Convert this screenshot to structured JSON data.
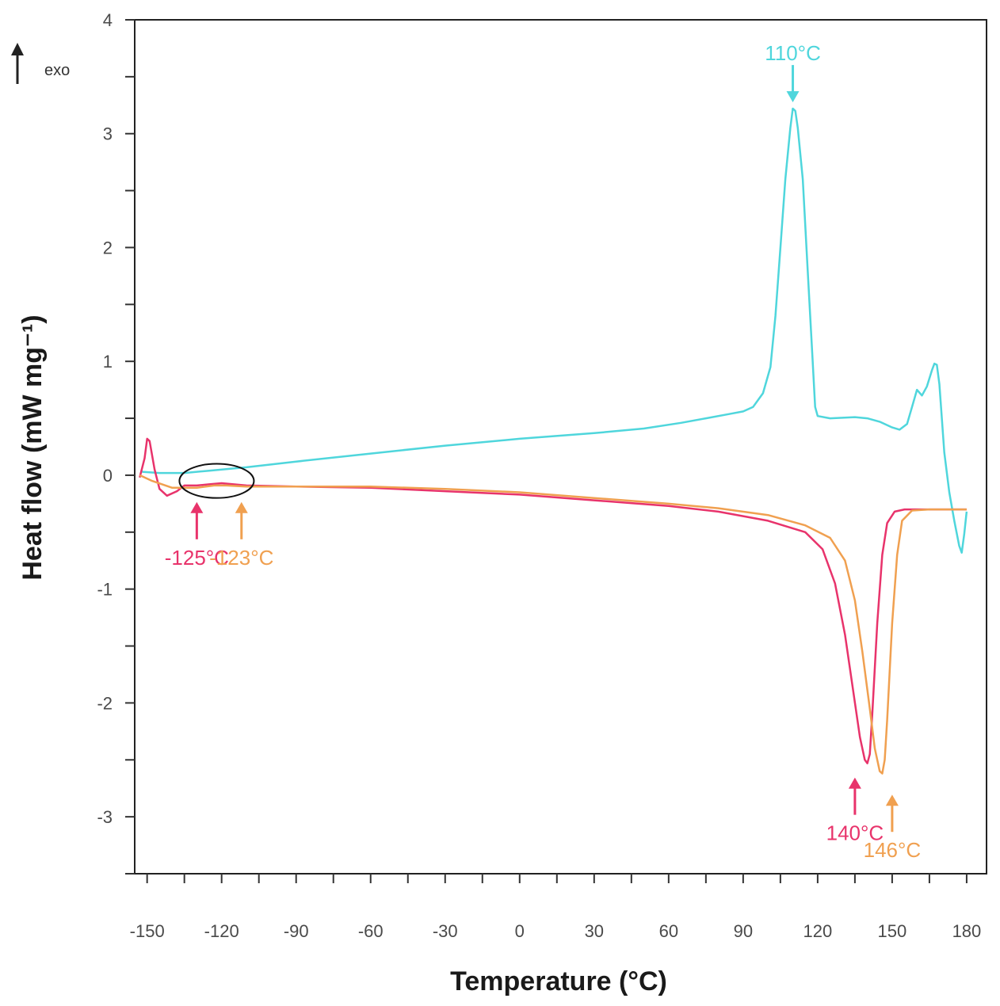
{
  "chart_data": {
    "type": "line",
    "xlabel": "Temperature (°C)",
    "ylabel": "Heat flow (mW mg⁻¹)",
    "xlim": [
      -155,
      188
    ],
    "ylim": [
      -3.5,
      4
    ],
    "x_ticks": [
      -150,
      -120,
      -90,
      -60,
      -30,
      0,
      30,
      60,
      90,
      120,
      150,
      180
    ],
    "y_ticks": [
      -3,
      -2,
      -1,
      0,
      1,
      2,
      3,
      4
    ],
    "exo_label": "exo",
    "colors": {
      "cyan": "#4fd6dc",
      "pink": "#e8336b",
      "orange": "#f0a050"
    },
    "series": [
      {
        "name": "cyan",
        "color": "#4fd6dc",
        "points": [
          [
            -152,
            0.03
          ],
          [
            -145,
            0.02
          ],
          [
            -135,
            0.02
          ],
          [
            -125,
            0.04
          ],
          [
            -110,
            0.07
          ],
          [
            -90,
            0.12
          ],
          [
            -60,
            0.19
          ],
          [
            -30,
            0.26
          ],
          [
            0,
            0.32
          ],
          [
            30,
            0.37
          ],
          [
            50,
            0.41
          ],
          [
            65,
            0.46
          ],
          [
            75,
            0.5
          ],
          [
            85,
            0.54
          ],
          [
            90,
            0.56
          ],
          [
            94,
            0.6
          ],
          [
            98,
            0.72
          ],
          [
            101,
            0.95
          ],
          [
            103,
            1.4
          ],
          [
            105,
            2.0
          ],
          [
            107,
            2.6
          ],
          [
            109,
            3.05
          ],
          [
            110,
            3.22
          ],
          [
            111,
            3.2
          ],
          [
            112,
            3.05
          ],
          [
            114,
            2.6
          ],
          [
            116,
            1.8
          ],
          [
            118,
            1.0
          ],
          [
            119,
            0.6
          ],
          [
            120,
            0.52
          ],
          [
            125,
            0.5
          ],
          [
            135,
            0.51
          ],
          [
            140,
            0.5
          ],
          [
            145,
            0.47
          ],
          [
            150,
            0.42
          ],
          [
            153,
            0.4
          ],
          [
            156,
            0.45
          ],
          [
            158,
            0.6
          ],
          [
            160,
            0.75
          ],
          [
            162,
            0.7
          ],
          [
            164,
            0.78
          ],
          [
            166,
            0.92
          ],
          [
            167,
            0.98
          ],
          [
            168,
            0.97
          ],
          [
            169,
            0.8
          ],
          [
            170,
            0.5
          ],
          [
            171,
            0.2
          ],
          [
            173,
            -0.15
          ],
          [
            175,
            -0.4
          ],
          [
            177,
            -0.62
          ],
          [
            178,
            -0.68
          ],
          [
            179,
            -0.52
          ],
          [
            180,
            -0.32
          ]
        ]
      },
      {
        "name": "pink",
        "color": "#e8336b",
        "points": [
          [
            -153,
            -0.02
          ],
          [
            -151,
            0.15
          ],
          [
            -150,
            0.32
          ],
          [
            -149,
            0.3
          ],
          [
            -147,
            0.05
          ],
          [
            -145,
            -0.12
          ],
          [
            -142,
            -0.18
          ],
          [
            -138,
            -0.14
          ],
          [
            -135,
            -0.09
          ],
          [
            -130,
            -0.09
          ],
          [
            -125,
            -0.08
          ],
          [
            -120,
            -0.07
          ],
          [
            -110,
            -0.09
          ],
          [
            -90,
            -0.1
          ],
          [
            -60,
            -0.11
          ],
          [
            -30,
            -0.14
          ],
          [
            0,
            -0.17
          ],
          [
            30,
            -0.22
          ],
          [
            60,
            -0.27
          ],
          [
            80,
            -0.32
          ],
          [
            100,
            -0.4
          ],
          [
            115,
            -0.5
          ],
          [
            122,
            -0.65
          ],
          [
            127,
            -0.95
          ],
          [
            131,
            -1.4
          ],
          [
            134,
            -1.85
          ],
          [
            137,
            -2.3
          ],
          [
            139,
            -2.5
          ],
          [
            140,
            -2.53
          ],
          [
            141,
            -2.45
          ],
          [
            142,
            -2.1
          ],
          [
            144,
            -1.3
          ],
          [
            146,
            -0.7
          ],
          [
            148,
            -0.42
          ],
          [
            151,
            -0.32
          ],
          [
            155,
            -0.3
          ],
          [
            160,
            -0.3
          ],
          [
            170,
            -0.3
          ],
          [
            177,
            -0.3
          ],
          [
            180,
            -0.3
          ]
        ]
      },
      {
        "name": "orange",
        "color": "#f0a050",
        "points": [
          [
            -153,
            0.0
          ],
          [
            -148,
            -0.05
          ],
          [
            -140,
            -0.11
          ],
          [
            -130,
            -0.11
          ],
          [
            -123,
            -0.09
          ],
          [
            -118,
            -0.09
          ],
          [
            -110,
            -0.1
          ],
          [
            -90,
            -0.1
          ],
          [
            -60,
            -0.1
          ],
          [
            -30,
            -0.12
          ],
          [
            0,
            -0.15
          ],
          [
            30,
            -0.2
          ],
          [
            60,
            -0.25
          ],
          [
            80,
            -0.29
          ],
          [
            100,
            -0.35
          ],
          [
            115,
            -0.44
          ],
          [
            125,
            -0.55
          ],
          [
            131,
            -0.75
          ],
          [
            135,
            -1.1
          ],
          [
            138,
            -1.55
          ],
          [
            141,
            -2.05
          ],
          [
            143,
            -2.4
          ],
          [
            145,
            -2.6
          ],
          [
            146,
            -2.62
          ],
          [
            147,
            -2.5
          ],
          [
            148,
            -2.15
          ],
          [
            150,
            -1.3
          ],
          [
            152,
            -0.7
          ],
          [
            154,
            -0.4
          ],
          [
            158,
            -0.31
          ],
          [
            165,
            -0.3
          ],
          [
            180,
            -0.3
          ]
        ]
      }
    ],
    "annotations": [
      {
        "text": "110°C",
        "color": "#4fd6dc",
        "x": 110,
        "y": 3.22,
        "arrow": "down"
      },
      {
        "text": "-125°C",
        "color": "#e8336b",
        "x": -130,
        "y": -0.18,
        "arrow": "up"
      },
      {
        "text": "-123°C",
        "color": "#f0a050",
        "x": -112,
        "y": -0.18,
        "arrow": "up"
      },
      {
        "text": "140°C",
        "color": "#e8336b",
        "x": 135,
        "y": -2.6,
        "arrow": "up"
      },
      {
        "text": "146°C",
        "color": "#f0a050",
        "x": 150,
        "y": -2.75,
        "arrow": "up"
      }
    ],
    "highlight_ellipse": {
      "cx": -122,
      "cy": -0.05,
      "rx_data": 15,
      "ry_data": 0.15
    }
  }
}
